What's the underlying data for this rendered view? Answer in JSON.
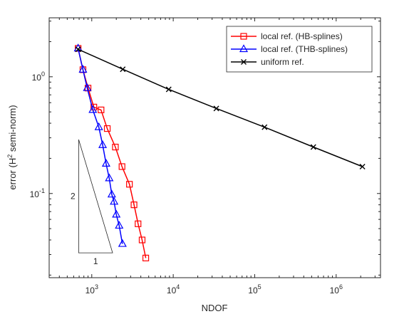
{
  "chart_data": {
    "type": "line",
    "xscale": "log",
    "yscale": "log",
    "xlabel": "NDOF",
    "ylabel": "error (H² semi-norm)",
    "ylabel_parts": {
      "prefix": "error (H",
      "sup": "2",
      "suffix": " semi-norm)"
    },
    "xlim": [
      300,
      3500000
    ],
    "ylim": [
      0.019,
      3.2
    ],
    "grid": false,
    "legend_position": "top-right",
    "x_ticks": [
      {
        "value": 1000,
        "base": "10",
        "exp": "3"
      },
      {
        "value": 10000,
        "base": "10",
        "exp": "4"
      },
      {
        "value": 100000,
        "base": "10",
        "exp": "5"
      },
      {
        "value": 1000000,
        "base": "10",
        "exp": "6"
      }
    ],
    "y_ticks": [
      {
        "value": 1.0,
        "base": "10",
        "exp": "0"
      },
      {
        "value": 0.1,
        "base": "10",
        "exp": "-1"
      }
    ],
    "series": [
      {
        "name": "local ref. (HB-splines)",
        "color": "#ff0000",
        "marker": "square",
        "x": [
          680,
          780,
          900,
          1060,
          1300,
          1550,
          1950,
          2350,
          2900,
          3300,
          3700,
          4150,
          4600
        ],
        "y": [
          1.75,
          1.15,
          0.8,
          0.55,
          0.52,
          0.36,
          0.25,
          0.17,
          0.12,
          0.08,
          0.055,
          0.04,
          0.028
        ]
      },
      {
        "name": "local ref. (THB-splines)",
        "color": "#0000ff",
        "marker": "triangle",
        "x": [
          680,
          780,
          880,
          1030,
          1220,
          1360,
          1500,
          1640,
          1760,
          1880,
          2000,
          2170,
          2380
        ],
        "y": [
          1.75,
          1.15,
          0.8,
          0.52,
          0.37,
          0.26,
          0.18,
          0.135,
          0.098,
          0.085,
          0.066,
          0.053,
          0.037
        ]
      },
      {
        "name": "uniform ref.",
        "color": "#000000",
        "marker": "x",
        "x": [
          680,
          2400,
          8800,
          33800,
          132000,
          525000,
          2100000
        ],
        "y": [
          1.72,
          1.16,
          0.78,
          0.535,
          0.37,
          0.25,
          0.17
        ]
      }
    ],
    "slope_triangle": {
      "vertical_label": "2",
      "horizontal_label": "1",
      "points": [
        [
          690,
          0.031
        ],
        [
          1800,
          0.031
        ],
        [
          690,
          0.29
        ]
      ]
    }
  }
}
